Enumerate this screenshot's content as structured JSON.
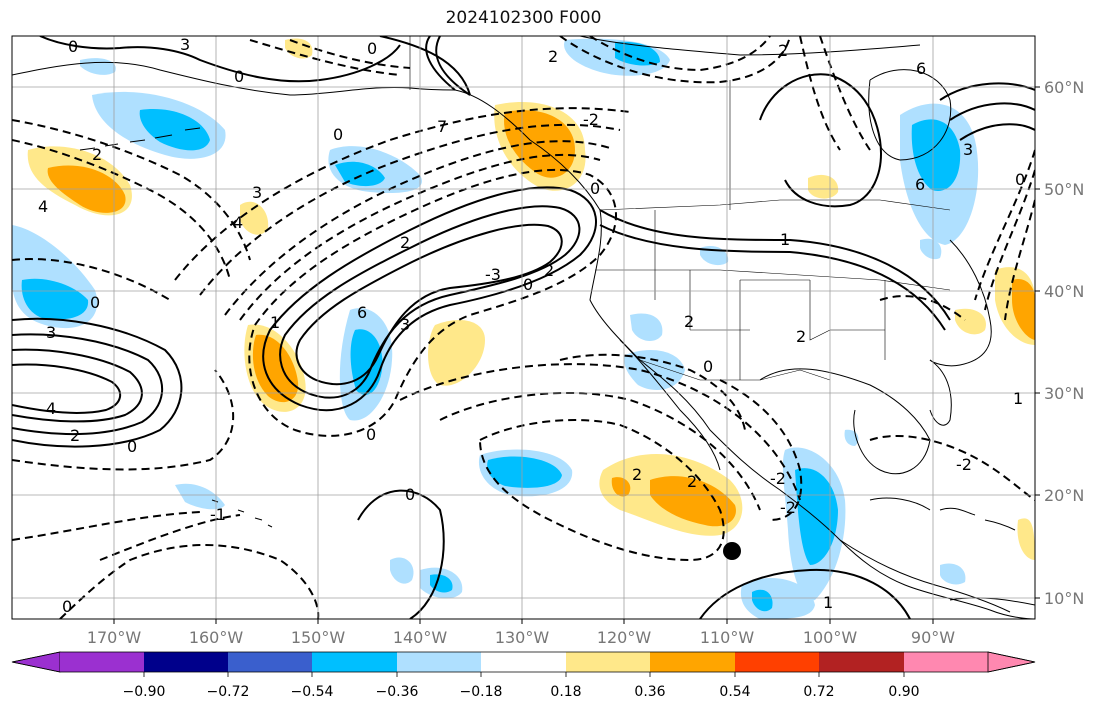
{
  "title": "2024102300 F000",
  "colors": {
    "land_outline": "#000000",
    "grid": "#a0a0a0",
    "axis_label": "#808080"
  },
  "lon_labels": [
    "170°W",
    "160°W",
    "150°W",
    "140°W",
    "130°W",
    "120°W",
    "110°W",
    "100°W",
    "90°W"
  ],
  "lat_labels": [
    "60°N",
    "50°N",
    "40°N",
    "30°N",
    "20°N",
    "10°N"
  ],
  "colorbar": {
    "bins": [
      {
        "color": "#9b30d0"
      },
      {
        "color": "#00008b"
      },
      {
        "color": "#3a5fcd"
      },
      {
        "color": "#00bfff"
      },
      {
        "color": "#afe0ff"
      },
      {
        "color": "#ffffff"
      },
      {
        "color": "#ffe88a"
      },
      {
        "color": "#ffa500"
      },
      {
        "color": "#ff4000"
      },
      {
        "color": "#b22222"
      },
      {
        "color": "#ff88b0"
      }
    ],
    "tick_labels": [
      "−0.90",
      "−0.72",
      "−0.54",
      "−0.36",
      "−0.18",
      "0.18",
      "0.36",
      "0.54",
      "0.72",
      "0.90"
    ]
  },
  "contour_labels": [
    "0",
    "0",
    "3",
    "2",
    "2",
    "0",
    "7",
    "0",
    "-2",
    "6",
    "3",
    "4",
    "3",
    "2",
    "6",
    "1",
    "4",
    "0",
    "2",
    "-3",
    "0",
    "2",
    "0",
    "3",
    "4",
    "2",
    "0",
    "0",
    "3",
    "6",
    "1",
    "2",
    "2",
    "0",
    "-2",
    "1",
    "0",
    "0",
    "2",
    "2",
    "-2",
    "-2",
    "1",
    "-1",
    "0"
  ],
  "marker": {
    "type": "filled-circle",
    "color": "#000000"
  }
}
